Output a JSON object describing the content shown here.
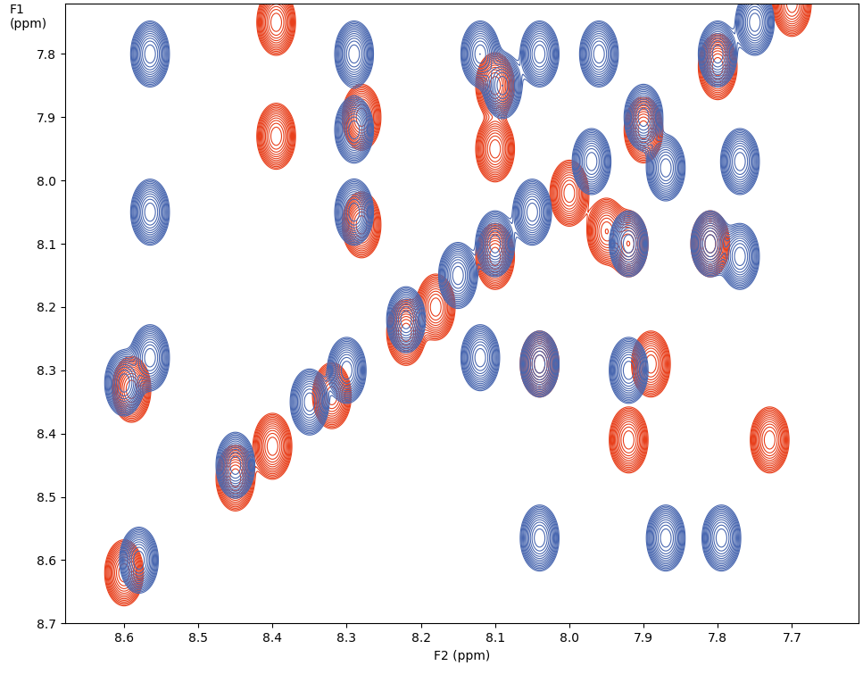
{
  "chart_data": {
    "type": "contour",
    "x_label": "F2 (ppm)",
    "y_label": "F1\n(ppm)",
    "xlim": [
      8.68,
      7.61
    ],
    "ylim": [
      8.7,
      7.72
    ],
    "xticks": [
      8.6,
      8.5,
      8.4,
      8.3,
      8.2,
      8.1,
      8.0,
      7.9,
      7.8,
      7.7
    ],
    "yticks": [
      7.8,
      7.9,
      8.0,
      8.1,
      8.2,
      8.3,
      8.4,
      8.5,
      8.6,
      8.7
    ],
    "series": [
      {
        "color": "#e8401c",
        "x": [
          8.395,
          8.395,
          8.28,
          8.28,
          8.1,
          8.1,
          7.92,
          7.81,
          7.95,
          8.04,
          7.89,
          7.92,
          7.73,
          8.59,
          8.6,
          8.45,
          8.4,
          8.32,
          8.22,
          8.18,
          8.1,
          8.0,
          7.9,
          7.8,
          7.7
        ],
        "y": [
          7.75,
          7.93,
          7.9,
          8.07,
          7.85,
          7.95,
          8.1,
          8.1,
          8.08,
          8.29,
          8.29,
          8.41,
          8.41,
          8.33,
          8.62,
          8.47,
          8.42,
          8.34,
          8.24,
          8.2,
          8.12,
          8.02,
          7.92,
          7.82,
          7.72
        ]
      },
      {
        "color": "#4a68b0",
        "x": [
          8.565,
          8.565,
          8.6,
          8.565,
          8.29,
          8.29,
          8.29,
          8.12,
          8.09,
          8.04,
          7.96,
          7.92,
          7.81,
          7.77,
          7.77,
          8.12,
          8.04,
          7.92,
          8.04,
          7.87,
          7.795,
          7.87,
          8.58,
          8.45,
          8.35,
          8.3,
          8.22,
          8.15,
          8.1,
          8.05,
          7.97,
          7.9,
          7.8,
          7.75
        ],
        "y": [
          7.8,
          8.05,
          8.32,
          8.28,
          7.8,
          7.92,
          8.05,
          7.8,
          7.85,
          7.8,
          7.8,
          8.1,
          8.1,
          7.97,
          8.12,
          8.28,
          8.29,
          8.3,
          8.565,
          8.565,
          8.565,
          7.98,
          8.6,
          8.45,
          8.35,
          8.3,
          8.22,
          8.15,
          8.1,
          8.05,
          7.97,
          7.9,
          7.8,
          7.75
        ]
      }
    ]
  }
}
